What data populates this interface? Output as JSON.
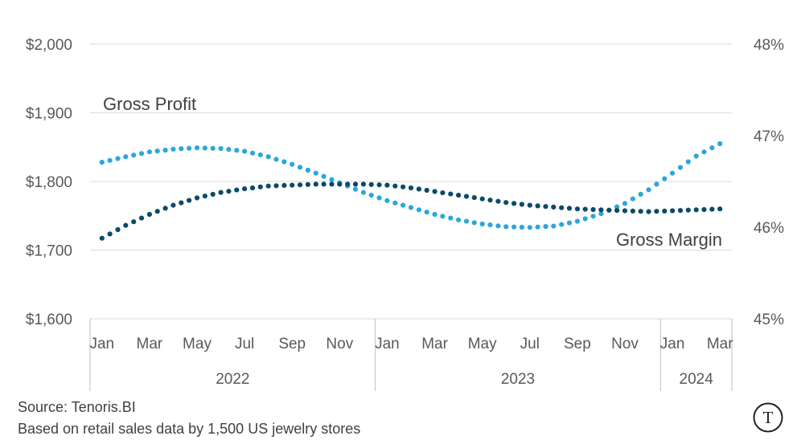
{
  "chart_data": {
    "type": "line",
    "style": "dotted",
    "x": [
      "Jan",
      "Feb",
      "Mar",
      "Apr",
      "May",
      "Jun",
      "Jul",
      "Aug",
      "Sep",
      "Oct",
      "Nov",
      "Dec",
      "Jan",
      "Feb",
      "Mar",
      "Apr",
      "May",
      "Jun",
      "Jul",
      "Aug",
      "Sep",
      "Oct",
      "Nov",
      "Dec",
      "Jan",
      "Feb",
      "Mar"
    ],
    "x_tick_labels": [
      "Jan",
      "Mar",
      "May",
      "Jul",
      "Sep",
      "Nov",
      "Jan",
      "Mar",
      "May",
      "Jul",
      "Sep",
      "Nov",
      "Jan",
      "Mar"
    ],
    "years": [
      {
        "label": "2022",
        "months": 12
      },
      {
        "label": "2023",
        "months": 12
      },
      {
        "label": "2024",
        "months": 3
      }
    ],
    "y_left": {
      "ylim": [
        1600,
        2000
      ],
      "ticks": [
        "$1,600",
        "$1,700",
        "$1,800",
        "$1,900",
        "$2,000"
      ]
    },
    "y_right": {
      "ylim": [
        45,
        48
      ],
      "ticks": [
        "45%",
        "46%",
        "47%",
        "48%"
      ]
    },
    "grid": "horizontal",
    "series": [
      {
        "name": "Gross Profit",
        "axis": "left",
        "color": "#2aa7dc",
        "values": [
          1828,
          1836,
          1843,
          1847,
          1849,
          1848,
          1844,
          1836,
          1825,
          1812,
          1798,
          1784,
          1772,
          1762,
          1752,
          1744,
          1738,
          1734,
          1733,
          1735,
          1742,
          1753,
          1768,
          1788,
          1812,
          1837,
          1855
        ]
      },
      {
        "name": "Gross Margin",
        "axis": "right",
        "color": "#0b4a6b",
        "values": [
          45.88,
          46.02,
          46.14,
          46.24,
          46.32,
          46.38,
          46.42,
          46.45,
          46.46,
          46.47,
          46.47,
          46.47,
          46.46,
          46.43,
          46.39,
          46.35,
          46.31,
          46.27,
          46.24,
          46.22,
          46.2,
          46.19,
          46.18,
          46.17,
          46.18,
          46.19,
          46.2
        ]
      }
    ]
  },
  "footer": {
    "source": "Source: Tenoris.BI",
    "note": "Based on retail sales data by 1,500 US jewelry stores"
  },
  "logo": {
    "glyph": "T"
  }
}
